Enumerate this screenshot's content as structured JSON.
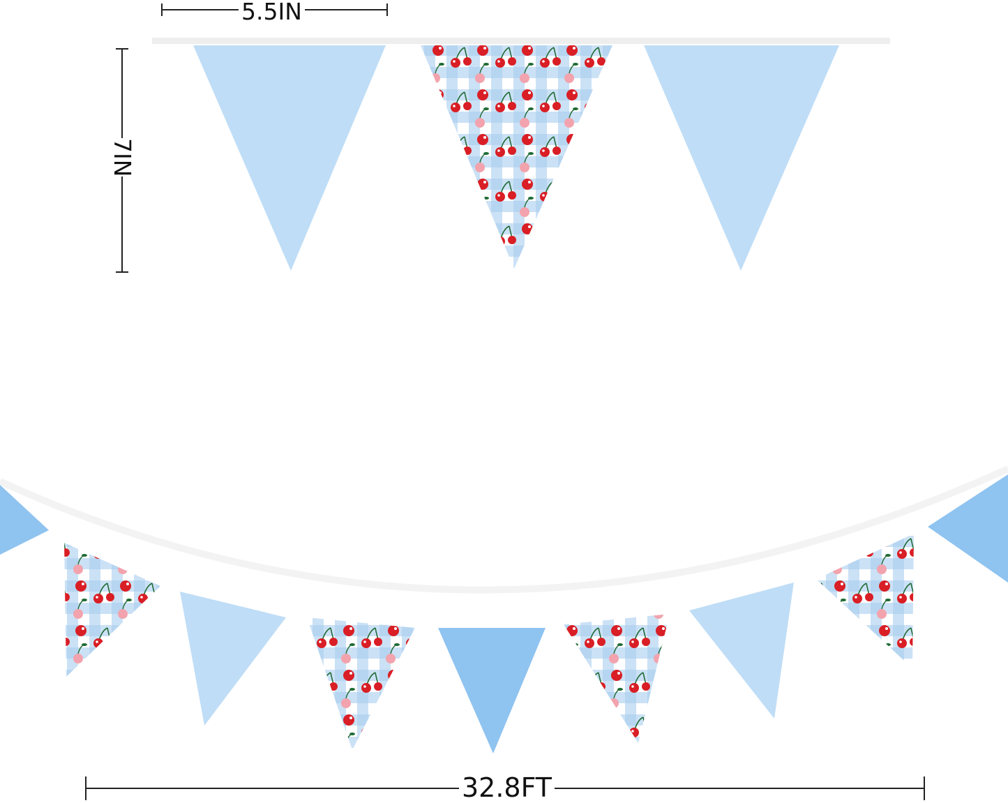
{
  "dimensions": {
    "flag_width": "5.5IN",
    "flag_height": "7IN",
    "total_length": "32.8FT"
  },
  "colors": {
    "light_blue": "#bfddf6",
    "mid_blue": "#8fc3f0",
    "gingham": "#a9cdee",
    "cherry_red": "#d91e25",
    "cherry_pink": "#f2a3ad",
    "leaf_green": "#1f6b35"
  },
  "flag_pattern": [
    "plain-light-blue",
    "cherry-gingham",
    "plain-light-blue"
  ]
}
